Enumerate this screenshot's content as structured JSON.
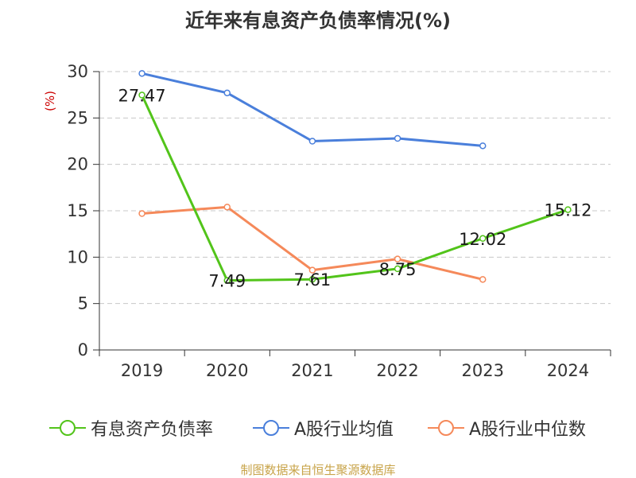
{
  "chart_data": {
    "type": "line",
    "title": "近年来有息资产负债率情况(%)",
    "ylabel": "(%)",
    "xlabel": "",
    "categories": [
      "2019",
      "2020",
      "2021",
      "2022",
      "2023",
      "2024"
    ],
    "ylim": [
      0,
      30
    ],
    "yticks": [
      0,
      5,
      10,
      15,
      20,
      25,
      30
    ],
    "grid": true,
    "legend_position": "bottom",
    "series": [
      {
        "name": "有息资产负债率",
        "color": "#52c41a",
        "values": [
          27.47,
          7.49,
          7.61,
          8.75,
          12.02,
          15.12
        ],
        "labels": [
          "27.47",
          "7.49",
          "7.61",
          "8.75",
          "12.02",
          "15.12"
        ]
      },
      {
        "name": "A股行业均值",
        "color": "#4a7fdb",
        "values": [
          29.8,
          27.7,
          22.5,
          22.8,
          22.0,
          null
        ]
      },
      {
        "name": "A股行业中位数",
        "color": "#f5895a",
        "values": [
          14.7,
          15.4,
          8.6,
          9.8,
          7.6,
          null
        ]
      }
    ]
  },
  "source": "制图数据来自恒生聚源数据库"
}
